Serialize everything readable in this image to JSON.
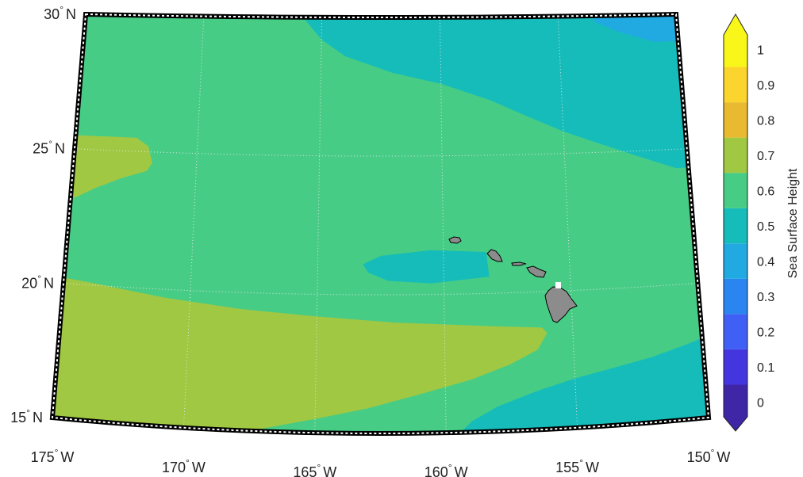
{
  "map": {
    "region": "Hawaii",
    "projection": "conic",
    "grid": "dotted",
    "frame": "black and white dashed",
    "land_color": "#8c8c8c",
    "features": [
      "Hawaiian Islands"
    ]
  },
  "lat_ticks": [
    {
      "value": 30,
      "deg": "30",
      "hemi": "N"
    },
    {
      "value": 25,
      "deg": "25",
      "hemi": "N"
    },
    {
      "value": 20,
      "deg": "20",
      "hemi": "N"
    },
    {
      "value": 15,
      "deg": "15",
      "hemi": "N"
    }
  ],
  "lon_ticks": [
    {
      "value": -175,
      "deg": "175",
      "hemi": "W"
    },
    {
      "value": -170,
      "deg": "170",
      "hemi": "W"
    },
    {
      "value": -165,
      "deg": "165",
      "hemi": "W"
    },
    {
      "value": -160,
      "deg": "160",
      "hemi": "W"
    },
    {
      "value": -155,
      "deg": "155",
      "hemi": "W"
    },
    {
      "value": -150,
      "deg": "150",
      "hemi": "W"
    }
  ],
  "colorbar": {
    "title": "Sea Surface Height",
    "extend": "both",
    "ticks": [
      "0",
      "0.1",
      "0.2",
      "0.3",
      "0.4",
      "0.5",
      "0.6",
      "0.7",
      "0.8",
      "0.9",
      "1"
    ],
    "colors": [
      "#3f26a6",
      "#4436df",
      "#3f5ff5",
      "#2b85f0",
      "#21a9e1",
      "#15bcba",
      "#47cc85",
      "#a0c842",
      "#e9b930",
      "#fbd52e",
      "#f9f71a"
    ]
  },
  "chart_data": {
    "type": "heatmap",
    "title": "",
    "colorbar_label": "Sea Surface Height",
    "lon_range": [
      -175,
      -150
    ],
    "lat_range": [
      15,
      30
    ],
    "clim": [
      -0.05,
      1.05
    ],
    "levels": [
      0,
      0.1,
      0.2,
      0.3,
      0.4,
      0.5,
      0.6,
      0.7,
      0.8,
      0.9,
      1.0
    ],
    "regions": [
      {
        "value": 0.6,
        "description": "background"
      },
      {
        "value": 0.5,
        "lon": [
          -166,
          -150
        ],
        "lat": [
          26,
          30
        ]
      },
      {
        "value": 0.4,
        "lon": [
          -153,
          -150
        ],
        "lat": [
          29,
          30
        ]
      },
      {
        "value": 0.7,
        "lon": [
          -175,
          -171.5
        ],
        "lat": [
          23,
          25.5
        ]
      },
      {
        "value": 0.7,
        "lon": [
          -175,
          -156
        ],
        "lat": [
          15,
          20
        ]
      },
      {
        "value": 0.5,
        "lon": [
          -163,
          -158
        ],
        "lat": [
          20.5,
          22
        ]
      },
      {
        "value": 0.5,
        "lon": [
          -160,
          -150
        ],
        "lat": [
          15,
          18
        ]
      }
    ]
  }
}
